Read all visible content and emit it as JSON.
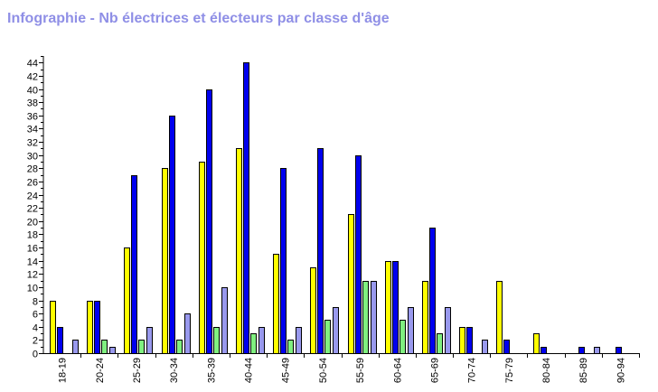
{
  "title": "Infographie - Nb électrices et électeurs par classe d'âge",
  "chart_data": {
    "type": "bar",
    "title": "Infographie - Nb électrices et électeurs par classe d'âge",
    "xlabel": "",
    "ylabel": "",
    "ylim": [
      0,
      45
    ],
    "ytick_step": 2,
    "grid": false,
    "categories": [
      "18-19",
      "20-24",
      "25-29",
      "30-34",
      "35-39",
      "40-44",
      "45-49",
      "50-54",
      "55-59",
      "60-64",
      "65-69",
      "70-74",
      "75-79",
      "80-84",
      "85-89",
      "90-94"
    ],
    "series": [
      {
        "color": "#ffff00",
        "values": [
          8,
          8,
          16,
          28,
          29,
          31,
          15,
          13,
          21,
          14,
          11,
          4,
          11,
          3,
          0,
          0
        ]
      },
      {
        "color": "#0000ee",
        "values": [
          4,
          8,
          27,
          36,
          40,
          44,
          28,
          31,
          30,
          14,
          19,
          4,
          2,
          1,
          1,
          1
        ]
      },
      {
        "color": "#80f080",
        "values": [
          0,
          2,
          2,
          2,
          4,
          3,
          2,
          5,
          11,
          5,
          3,
          0,
          0,
          0,
          0,
          0
        ]
      },
      {
        "color": "#9999ee",
        "values": [
          2,
          1,
          4,
          6,
          10,
          4,
          4,
          7,
          11,
          7,
          7,
          2,
          0,
          0,
          1,
          0
        ]
      }
    ]
  }
}
